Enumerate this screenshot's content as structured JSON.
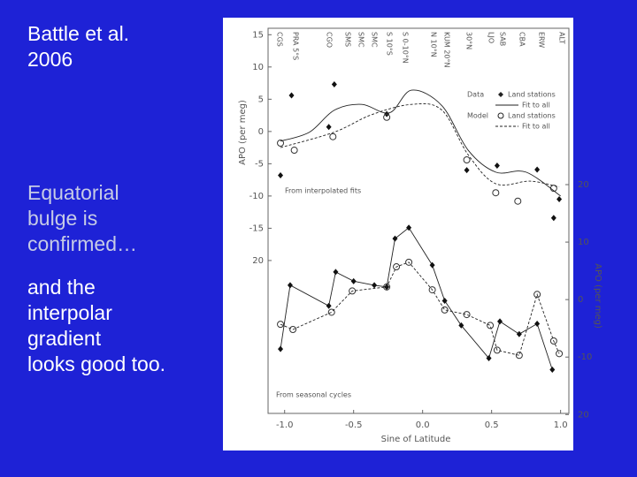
{
  "slide": {
    "title_lines": [
      "Battle et al.",
      "2006"
    ],
    "highlight_lines": [
      "Equatorial",
      "bulge is",
      "confirmed…"
    ],
    "body_lines": [
      "and the",
      "interpolar",
      "gradient",
      "looks good too."
    ]
  },
  "figure": {
    "xlabel": "Sine of Latitude",
    "ylabel": "APO (per meg)",
    "y2label": "APO (per meg)",
    "xlim": [
      -1.12,
      1.06
    ],
    "ylim": [
      -43.7,
      16.0
    ],
    "y2lim": [
      -19.8,
      47.2
    ],
    "xticks": [
      {
        "value": -1,
        "label": "-1.0"
      },
      -0.5,
      {
        "value": 0,
        "label": "0.0"
      },
      0.5,
      {
        "value": 1,
        "label": "1.0"
      }
    ],
    "yticks": [
      15,
      10,
      5,
      0,
      -5,
      -10,
      -15,
      {
        "value": -20,
        "label": "20"
      }
    ],
    "y2ticks": [
      20,
      10,
      0,
      -10,
      {
        "value": -20,
        "label": "20"
      }
    ],
    "stations": [
      "CGS",
      "PRA 5°S",
      "CGO",
      "SMS",
      "SMC",
      "SMC",
      "S 10°S",
      "S 0-10°N",
      "N 10°N",
      "KUM 20°N",
      "30°N",
      "LJO",
      "SAB",
      "CBA",
      "ERW",
      "ALT"
    ],
    "annotations": [
      "From interpolated fits",
      "From seasonal cycles"
    ],
    "legend": [
      {
        "group": "Data",
        "items": [
          "Land stations",
          "Fit to all"
        ]
      },
      {
        "group": "Model",
        "items": [
          "Land stations",
          "Fit to all"
        ]
      }
    ],
    "series": [
      {
        "name": "Data land stations",
        "axis": "y",
        "marker": "diamond",
        "line": "none",
        "x": [
          -1.03,
          -0.95,
          -0.68,
          -0.64,
          -0.26,
          0.32,
          0.54,
          0.83,
          0.95,
          0.99
        ],
        "values": [
          -6.8,
          5.6,
          0.7,
          7.3,
          2.7,
          -6.0,
          -5.3,
          -5.9,
          -13.4,
          -10.5
        ]
      },
      {
        "name": "Model land stations",
        "axis": "y",
        "marker": "circle",
        "line": "none",
        "x": [
          -1.03,
          -0.93,
          -0.65,
          -0.26,
          0.32,
          0.53,
          0.69,
          0.95
        ],
        "values": [
          -1.8,
          -2.9,
          -0.8,
          2.2,
          -4.4,
          -9.5,
          -10.8,
          -8.8
        ]
      },
      {
        "name": "Data fit to all",
        "axis": "y",
        "marker": "none",
        "line": "solid",
        "x": [
          -1.03,
          -0.82,
          -0.64,
          -0.44,
          -0.24,
          -0.08,
          0.14,
          0.33,
          0.53,
          0.75,
          1.0
        ],
        "values": [
          -1.5,
          -0.1,
          3.3,
          4.2,
          2.9,
          6.4,
          4.0,
          -2.9,
          -6.3,
          -6.3,
          -10
        ]
      },
      {
        "name": "Model fit to all",
        "axis": "y",
        "marker": "none",
        "line": "dashed",
        "x": [
          -1.03,
          -0.64,
          -0.37,
          -0.08,
          0.14,
          0.33,
          0.53,
          0.78,
          0.99
        ],
        "values": [
          -2.5,
          -0.1,
          2.6,
          4.2,
          3.3,
          -3.6,
          -8.1,
          -7.7,
          -8.6
        ]
      },
      {
        "name": "Data seasonal",
        "axis": "y2",
        "marker": "diamond",
        "line": "solid",
        "x": [
          -1.03,
          -0.96,
          -0.68,
          -0.63,
          -0.5,
          -0.35,
          -0.26,
          -0.2,
          -0.1,
          0.07,
          0.16,
          0.28,
          0.48,
          0.56,
          0.7,
          0.83,
          0.94
        ],
        "values": [
          -8.6,
          2.5,
          -1.1,
          4.8,
          3.2,
          2.5,
          2.2,
          10.6,
          12.5,
          6.0,
          -0.2,
          -4.5,
          -10.2,
          -3.8,
          -6.0,
          -4.2,
          -12.2
        ]
      },
      {
        "name": "Model seasonal",
        "axis": "y2",
        "marker": "circle",
        "line": "dashed",
        "x": [
          -1.03,
          -0.94,
          -0.66,
          -0.51,
          -0.26,
          -0.19,
          -0.1,
          0.07,
          0.16,
          0.32,
          0.49,
          0.54,
          0.7,
          0.83,
          0.95,
          0.99
        ],
        "values": [
          -4.3,
          -5.2,
          -2.2,
          1.5,
          2.2,
          5.7,
          6.5,
          1.7,
          -1.8,
          -2.6,
          -4.5,
          -8.8,
          -9.7,
          0.9,
          -7.2,
          -9.4
        ]
      }
    ]
  }
}
